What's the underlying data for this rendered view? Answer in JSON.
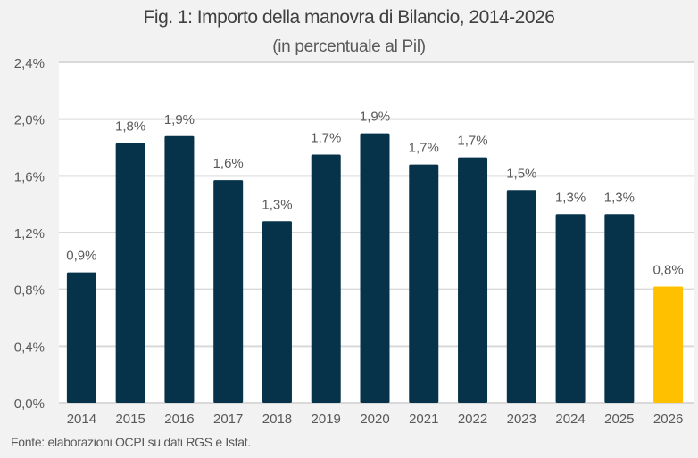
{
  "chart_data": {
    "type": "bar",
    "title": "Fig. 1: Importo della manovra di Bilancio, 2014-2026",
    "subtitle": "(in percentuale al Pil)",
    "xlabel": "",
    "ylabel": "",
    "categories": [
      "2014",
      "2015",
      "2016",
      "2017",
      "2018",
      "2019",
      "2020",
      "2021",
      "2022",
      "2023",
      "2024",
      "2025",
      "2026"
    ],
    "values": [
      0.92,
      1.83,
      1.88,
      1.57,
      1.28,
      1.75,
      1.9,
      1.68,
      1.73,
      1.5,
      1.33,
      1.33,
      0.82
    ],
    "data_labels": [
      "0,9%",
      "1,8%",
      "1,9%",
      "1,6%",
      "1,3%",
      "1,7%",
      "1,9%",
      "1,7%",
      "1,7%",
      "1,5%",
      "1,3%",
      "1,3%",
      "0,8%"
    ],
    "ylim": [
      0,
      2.4
    ],
    "yticks": [
      0,
      0.4,
      0.8,
      1.2,
      1.6,
      2.0,
      2.4
    ],
    "ytick_labels": [
      "0,0%",
      "0,4%",
      "0,8%",
      "1,2%",
      "1,6%",
      "2,0%",
      "2,4%"
    ],
    "grid": true,
    "legend": "none",
    "colors": {
      "default": "#07334a",
      "highlight": "#ffc000",
      "highlight_category": "2026",
      "grid": "#d9d9d9"
    },
    "source": "Fonte: elaborazioni OCPI su dati RGS e Istat."
  }
}
